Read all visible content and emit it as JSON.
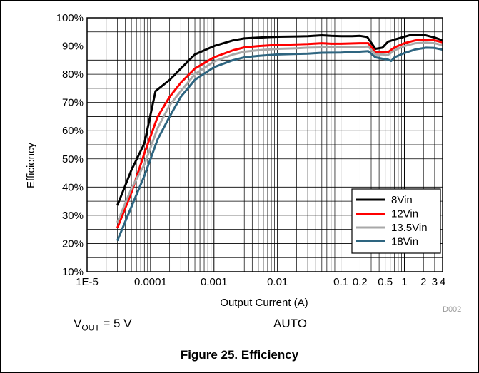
{
  "chart_data": {
    "type": "line",
    "xlabel": "Output Current (A)",
    "ylabel": "Efficiency",
    "xscale": "log",
    "xlim": [
      1e-05,
      4
    ],
    "ylim": [
      10,
      100
    ],
    "x_ticks": [
      {
        "value": 1e-05,
        "label": "1E-5"
      },
      {
        "value": 0.0001,
        "label": "0.0001"
      },
      {
        "value": 0.001,
        "label": "0.001"
      },
      {
        "value": 0.01,
        "label": "0.01"
      },
      {
        "value": 0.1,
        "label": "0.1"
      },
      {
        "value": 0.2,
        "label": "0.2"
      },
      {
        "value": 0.5,
        "label": "0.5"
      },
      {
        "value": 1,
        "label": "1"
      },
      {
        "value": 2,
        "label": "2"
      },
      {
        "value": 3,
        "label": "3"
      },
      {
        "value": 4,
        "label": "4"
      }
    ],
    "y_ticks": [
      {
        "value": 10,
        "label": "10%"
      },
      {
        "value": 20,
        "label": "20%"
      },
      {
        "value": 30,
        "label": "30%"
      },
      {
        "value": 40,
        "label": "40%"
      },
      {
        "value": 50,
        "label": "50%"
      },
      {
        "value": 60,
        "label": "60%"
      },
      {
        "value": 70,
        "label": "70%"
      },
      {
        "value": 80,
        "label": "80%"
      },
      {
        "value": 90,
        "label": "90%"
      },
      {
        "value": 100,
        "label": "100%"
      }
    ],
    "grid": true,
    "legend_position": "bottom-right",
    "series": [
      {
        "name": "8Vin",
        "color": "#000000",
        "points": [
          [
            3e-05,
            33.5
          ],
          [
            5e-05,
            46
          ],
          [
            8e-05,
            55.5
          ],
          [
            0.00012,
            74
          ],
          [
            0.0002,
            78
          ],
          [
            0.0003,
            82
          ],
          [
            0.0005,
            87
          ],
          [
            0.001,
            90
          ],
          [
            0.002,
            92
          ],
          [
            0.003,
            92.7
          ],
          [
            0.005,
            93
          ],
          [
            0.01,
            93.3
          ],
          [
            0.02,
            93.4
          ],
          [
            0.03,
            93.5
          ],
          [
            0.05,
            93.8
          ],
          [
            0.07,
            93.6
          ],
          [
            0.1,
            93.5
          ],
          [
            0.15,
            93.5
          ],
          [
            0.2,
            93.6
          ],
          [
            0.26,
            93.2
          ],
          [
            0.35,
            89
          ],
          [
            0.45,
            89.4
          ],
          [
            0.55,
            91.5
          ],
          [
            0.7,
            92.3
          ],
          [
            0.9,
            93
          ],
          [
            1.3,
            94
          ],
          [
            2,
            94
          ],
          [
            3,
            93
          ],
          [
            4,
            92
          ]
        ]
      },
      {
        "name": "12Vin",
        "color": "#ff0000",
        "points": [
          [
            3e-05,
            25.5
          ],
          [
            5e-05,
            38
          ],
          [
            8e-05,
            52
          ],
          [
            0.00013,
            65
          ],
          [
            0.0002,
            72
          ],
          [
            0.0003,
            77
          ],
          [
            0.0005,
            82
          ],
          [
            0.001,
            86
          ],
          [
            0.002,
            88.5
          ],
          [
            0.003,
            89.5
          ],
          [
            0.005,
            90
          ],
          [
            0.01,
            90.4
          ],
          [
            0.02,
            90.6
          ],
          [
            0.03,
            90.7
          ],
          [
            0.05,
            91
          ],
          [
            0.07,
            90.8
          ],
          [
            0.1,
            90.8
          ],
          [
            0.2,
            91
          ],
          [
            0.27,
            91
          ],
          [
            0.35,
            88
          ],
          [
            0.45,
            88
          ],
          [
            0.55,
            87.8
          ],
          [
            0.7,
            89.5
          ],
          [
            1,
            91
          ],
          [
            1.5,
            92
          ],
          [
            2.2,
            92.3
          ],
          [
            3,
            92
          ],
          [
            4,
            91.3
          ]
        ]
      },
      {
        "name": "13.5Vin",
        "color": "#a8a8a8",
        "points": [
          [
            3e-05,
            27.5
          ],
          [
            5e-05,
            39.5
          ],
          [
            8e-05,
            48
          ],
          [
            0.00013,
            61
          ],
          [
            0.0002,
            69
          ],
          [
            0.0003,
            74
          ],
          [
            0.0005,
            80
          ],
          [
            0.001,
            84.5
          ],
          [
            0.002,
            87
          ],
          [
            0.003,
            88
          ],
          [
            0.005,
            88.5
          ],
          [
            0.01,
            89
          ],
          [
            0.02,
            89.2
          ],
          [
            0.03,
            89.4
          ],
          [
            0.05,
            89.5
          ],
          [
            0.1,
            89.5
          ],
          [
            0.2,
            89.7
          ],
          [
            0.27,
            89.8
          ],
          [
            0.35,
            87
          ],
          [
            0.45,
            87
          ],
          [
            0.55,
            86.8
          ],
          [
            0.7,
            88.5
          ],
          [
            1,
            90
          ],
          [
            1.5,
            91
          ],
          [
            2.2,
            91.2
          ],
          [
            3,
            91
          ],
          [
            4,
            90.3
          ]
        ]
      },
      {
        "name": "18Vin",
        "color": "#2e6580",
        "points": [
          [
            3e-05,
            21
          ],
          [
            5e-05,
            33
          ],
          [
            8e-05,
            44
          ],
          [
            0.00013,
            57
          ],
          [
            0.0002,
            65
          ],
          [
            0.0003,
            72
          ],
          [
            0.0005,
            78
          ],
          [
            0.001,
            82.5
          ],
          [
            0.002,
            85
          ],
          [
            0.003,
            86
          ],
          [
            0.005,
            86.5
          ],
          [
            0.01,
            87
          ],
          [
            0.02,
            87.2
          ],
          [
            0.03,
            87.3
          ],
          [
            0.05,
            87.6
          ],
          [
            0.1,
            87.7
          ],
          [
            0.2,
            88
          ],
          [
            0.27,
            88.2
          ],
          [
            0.35,
            86
          ],
          [
            0.45,
            85.5
          ],
          [
            0.55,
            85.2
          ],
          [
            0.62,
            84.7
          ],
          [
            0.7,
            86
          ],
          [
            1,
            87.5
          ],
          [
            1.5,
            88.8
          ],
          [
            2.2,
            89.4
          ],
          [
            3,
            89.3
          ],
          [
            4,
            88.7
          ]
        ]
      }
    ]
  },
  "source_code": "D002",
  "conditions": {
    "vout_v": "V",
    "vout_sub": "OUT",
    "vout_value": " = 5 V",
    "mode": "AUTO"
  },
  "caption": "Figure 25. Efficiency"
}
